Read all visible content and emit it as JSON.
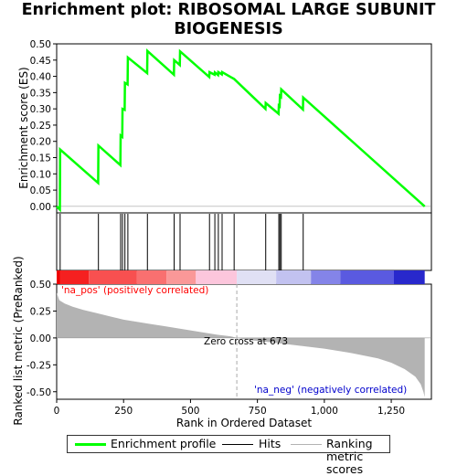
{
  "title": "Enrichment plot: RIBOSOMAL LARGE SUBUNIT\nBIOGENESIS",
  "colors": {
    "enrichment": "#00ff00",
    "hits": "#000000",
    "metric_fill": "#b3b3b3",
    "pos_label": "#ff0000",
    "neg_label": "#0000cc",
    "zero_line": "#aaaaaa"
  },
  "legend": {
    "placement": "bottom",
    "items": [
      {
        "label": "Enrichment profile",
        "icon": "green-line"
      },
      {
        "label": "Hits",
        "icon": "black-line"
      },
      {
        "label": "Ranking metric scores",
        "icon": "gray-line"
      }
    ]
  },
  "chart_data": [
    {
      "type": "line",
      "name": "enrichment-profile",
      "ylabel": "Enrichment score (ES)",
      "xlim": [
        0,
        1400
      ],
      "ylim": [
        -0.02,
        0.5
      ],
      "yticks": [
        "0.00",
        "0.05",
        "0.10",
        "0.15",
        "0.20",
        "0.25",
        "0.30",
        "0.35",
        "0.40",
        "0.45",
        "0.50"
      ],
      "ytick_values": [
        0,
        0.05,
        0.1,
        0.15,
        0.2,
        0.25,
        0.3,
        0.35,
        0.4,
        0.45,
        0.5
      ],
      "grid": false,
      "points": [
        [
          0,
          0.0
        ],
        [
          12,
          -0.01
        ],
        [
          13,
          0.175
        ],
        [
          155,
          0.072
        ],
        [
          156,
          0.187
        ],
        [
          238,
          0.127
        ],
        [
          239,
          0.218
        ],
        [
          245,
          0.214
        ],
        [
          246,
          0.3
        ],
        [
          254,
          0.297
        ],
        [
          255,
          0.38
        ],
        [
          265,
          0.375
        ],
        [
          266,
          0.458
        ],
        [
          338,
          0.41
        ],
        [
          339,
          0.478
        ],
        [
          438,
          0.405
        ],
        [
          439,
          0.45
        ],
        [
          460,
          0.435
        ],
        [
          461,
          0.477
        ],
        [
          570,
          0.398
        ],
        [
          571,
          0.413
        ],
        [
          590,
          0.405
        ],
        [
          591,
          0.412
        ],
        [
          603,
          0.404
        ],
        [
          604,
          0.413
        ],
        [
          617,
          0.406
        ],
        [
          618,
          0.413
        ],
        [
          663,
          0.392
        ],
        [
          780,
          0.3
        ],
        [
          781,
          0.318
        ],
        [
          829,
          0.285
        ],
        [
          830,
          0.31
        ],
        [
          833,
          0.308
        ],
        [
          834,
          0.34
        ],
        [
          838,
          0.337
        ],
        [
          839,
          0.36
        ],
        [
          920,
          0.298
        ],
        [
          921,
          0.335
        ],
        [
          1375,
          0.0
        ]
      ]
    },
    {
      "type": "scatter",
      "name": "hits",
      "hit_ranks": [
        13,
        156,
        239,
        246,
        255,
        266,
        339,
        439,
        461,
        571,
        591,
        604,
        618,
        663,
        781,
        830,
        834,
        839,
        921
      ]
    },
    {
      "type": "area",
      "name": "ranked-list-metric",
      "xlabel": "Rank in Ordered Dataset",
      "ylabel": "Ranked list metric (PreRanked)",
      "xlim": [
        0,
        1400
      ],
      "ylim": [
        -0.57,
        0.5
      ],
      "xticks": [
        "0",
        "250",
        "500",
        "750",
        "1,000",
        "1,250"
      ],
      "xtick_values": [
        0,
        250,
        500,
        750,
        1000,
        1250
      ],
      "yticks": [
        "-0.50",
        "-0.25",
        "0.00",
        "0.25",
        "0.50"
      ],
      "ytick_values": [
        -0.5,
        -0.25,
        0,
        0.25,
        0.5
      ],
      "points": [
        [
          0,
          0.42
        ],
        [
          10,
          0.35
        ],
        [
          30,
          0.32
        ],
        [
          60,
          0.29
        ],
        [
          100,
          0.26
        ],
        [
          150,
          0.23
        ],
        [
          200,
          0.2
        ],
        [
          250,
          0.17
        ],
        [
          300,
          0.15
        ],
        [
          350,
          0.13
        ],
        [
          400,
          0.11
        ],
        [
          450,
          0.09
        ],
        [
          500,
          0.07
        ],
        [
          550,
          0.05
        ],
        [
          600,
          0.03
        ],
        [
          650,
          0.015
        ],
        [
          673,
          0.0
        ],
        [
          720,
          -0.02
        ],
        [
          800,
          -0.04
        ],
        [
          900,
          -0.07
        ],
        [
          1000,
          -0.1
        ],
        [
          1100,
          -0.14
        ],
        [
          1200,
          -0.19
        ],
        [
          1250,
          -0.23
        ],
        [
          1300,
          -0.29
        ],
        [
          1340,
          -0.36
        ],
        [
          1360,
          -0.43
        ],
        [
          1370,
          -0.5
        ],
        [
          1375,
          -0.55
        ]
      ],
      "zero_cross": 673,
      "annotations": {
        "zero_cross": "Zero cross at 673",
        "pos": "'na_pos' (positively correlated)",
        "neg": "'na_neg' (negatively correlated)"
      }
    }
  ],
  "heatbar": [
    {
      "from": 0,
      "to": 12,
      "color": "#ee0000"
    },
    {
      "from": 12,
      "to": 120,
      "color": "#f52020"
    },
    {
      "from": 120,
      "to": 300,
      "color": "#f85050"
    },
    {
      "from": 300,
      "to": 410,
      "color": "#f97070"
    },
    {
      "from": 410,
      "to": 520,
      "color": "#fa9898"
    },
    {
      "from": 520,
      "to": 673,
      "color": "#fcc6dc"
    },
    {
      "from": 673,
      "to": 820,
      "color": "#e0e0f4"
    },
    {
      "from": 820,
      "to": 950,
      "color": "#c2c2f0"
    },
    {
      "from": 950,
      "to": 1060,
      "color": "#8484e8"
    },
    {
      "from": 1060,
      "to": 1260,
      "color": "#5a5ae0"
    },
    {
      "from": 1260,
      "to": 1375,
      "color": "#2828cc"
    }
  ]
}
